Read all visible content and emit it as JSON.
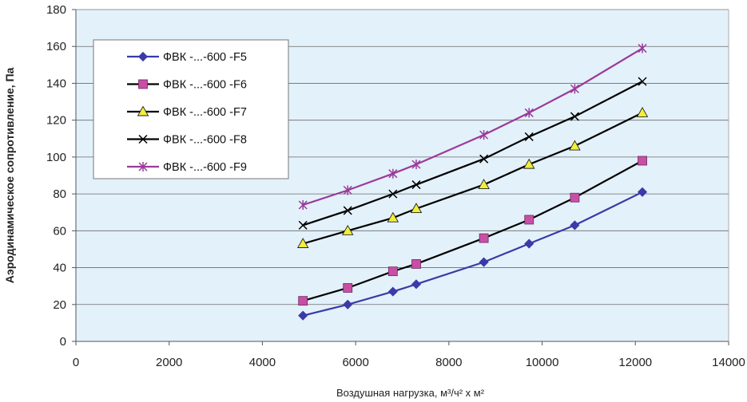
{
  "chart_data": {
    "type": "line",
    "xlabel": "Воздушная нагрузка, м³/ч² x м²",
    "ylabel": "Аэродинамическое сопротивление, Па",
    "xlim": [
      0,
      14000
    ],
    "ylim": [
      0,
      180
    ],
    "xticks": [
      "0",
      "2000",
      "4000",
      "6000",
      "8000",
      "10000",
      "12000",
      "14000"
    ],
    "yticks": [
      "0",
      "20",
      "40",
      "60",
      "80",
      "100",
      "120",
      "140",
      "160",
      "180"
    ],
    "grid": "horizontal",
    "legend_position": "top-left",
    "plot_background": "#e3f1fa",
    "x": [
      4870,
      5830,
      6800,
      7300,
      8750,
      9720,
      10700,
      12150
    ],
    "series": [
      {
        "name": "ФВК -...-600 -F5",
        "color": "#3a3aa8",
        "marker": "diamond",
        "values": [
          14,
          20,
          27,
          31,
          43,
          53,
          63,
          81
        ]
      },
      {
        "name": "ФВК -...-600 -F6",
        "color": "#000000",
        "marker": "square",
        "marker_color": "#c94fa6",
        "values": [
          22,
          29,
          38,
          42,
          56,
          66,
          78,
          98
        ]
      },
      {
        "name": "ФВК -...-600 -F7",
        "color": "#000000",
        "marker": "triangle",
        "marker_color": "#f2ee3b",
        "values": [
          53,
          60,
          67,
          72,
          85,
          96,
          106,
          124
        ]
      },
      {
        "name": "ФВК -...-600 -F8",
        "color": "#000000",
        "marker": "x",
        "values": [
          63,
          71,
          80,
          85,
          99,
          111,
          122,
          141
        ]
      },
      {
        "name": "ФВК -...-600 -F9",
        "color": "#9b3a9b",
        "marker": "star",
        "values": [
          74,
          82,
          91,
          96,
          112,
          124,
          137,
          159
        ]
      }
    ]
  }
}
